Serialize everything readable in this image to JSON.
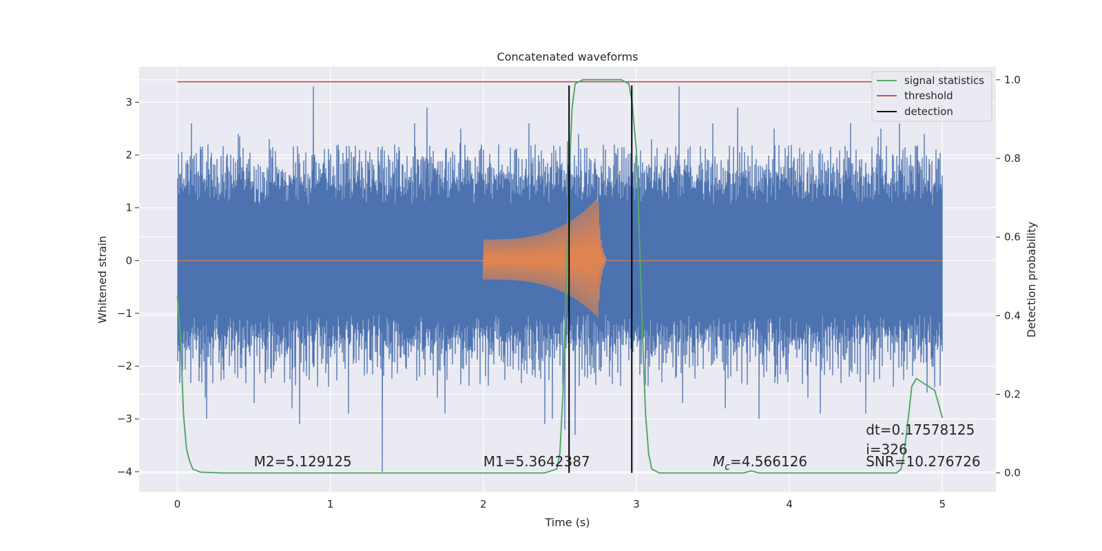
{
  "chart_data": {
    "type": "line",
    "title": "Concatenated waveforms",
    "xlabel": "Time (s)",
    "ylabel": "Whitened strain",
    "y2label": "Detection probability",
    "xlim": [
      -0.25,
      5.35
    ],
    "ylim": [
      -4.38,
      3.67
    ],
    "y2lim": [
      -0.048,
      1.033
    ],
    "xticks": [
      "0",
      "1",
      "2",
      "3",
      "4",
      "5"
    ],
    "yticks": [
      "3",
      "2",
      "1",
      "0",
      "−1",
      "−2",
      "−3",
      "−4"
    ],
    "y2ticks": [
      "1.0",
      "0.8",
      "0.6",
      "0.4",
      "0.2",
      "0.0"
    ],
    "grid": true,
    "legend_position": "top-right",
    "series": [
      {
        "kind": "noise",
        "color": "#4c72b0",
        "x_range": [
          0,
          5
        ],
        "envelope_upper": 1.2,
        "envelope_lower": -1.15,
        "spikes": [
          {
            "x": 0.09,
            "y": 2.6
          },
          {
            "x": 0.2,
            "y": 2.2
          },
          {
            "x": 0.4,
            "y": 2.4
          },
          {
            "x": 0.6,
            "y": 2.3
          },
          {
            "x": 0.89,
            "y": 3.3
          },
          {
            "x": 1.05,
            "y": 2.2
          },
          {
            "x": 1.33,
            "y": 2.1
          },
          {
            "x": 1.55,
            "y": 2.6
          },
          {
            "x": 1.63,
            "y": 2.9
          },
          {
            "x": 1.85,
            "y": 2.5
          },
          {
            "x": 2.1,
            "y": 2.2
          },
          {
            "x": 2.3,
            "y": 2.6
          },
          {
            "x": 2.62,
            "y": 2.4
          },
          {
            "x": 3.1,
            "y": 2.3
          },
          {
            "x": 3.28,
            "y": 3.3
          },
          {
            "x": 3.5,
            "y": 2.6
          },
          {
            "x": 3.66,
            "y": 2.9
          },
          {
            "x": 3.9,
            "y": 2.5
          },
          {
            "x": 4.2,
            "y": 2.4
          },
          {
            "x": 4.4,
            "y": 2.6
          },
          {
            "x": 4.6,
            "y": 2.5
          },
          {
            "x": 4.72,
            "y": 2.6
          },
          {
            "x": 4.88,
            "y": 2.4
          },
          {
            "x": 0.18,
            "y": -2.6
          },
          {
            "x": 0.19,
            "y": -3.0
          },
          {
            "x": 0.5,
            "y": -2.7
          },
          {
            "x": 0.75,
            "y": -2.8
          },
          {
            "x": 0.8,
            "y": -3.1
          },
          {
            "x": 1.12,
            "y": -2.9
          },
          {
            "x": 1.34,
            "y": -4.0
          },
          {
            "x": 1.7,
            "y": -2.6
          },
          {
            "x": 1.75,
            "y": -2.9
          },
          {
            "x": 2.4,
            "y": -3.1
          },
          {
            "x": 2.45,
            "y": -3.0
          },
          {
            "x": 2.53,
            "y": -3.2
          },
          {
            "x": 2.6,
            "y": -3.3
          },
          {
            "x": 3.3,
            "y": -2.7
          },
          {
            "x": 3.58,
            "y": -2.8
          },
          {
            "x": 3.8,
            "y": -3.0
          },
          {
            "x": 4.12,
            "y": -2.6
          },
          {
            "x": 4.2,
            "y": -2.9
          },
          {
            "x": 4.5,
            "y": -2.9
          },
          {
            "x": 4.9,
            "y": -2.5
          },
          {
            "x": 4.95,
            "y": -2.4
          }
        ]
      },
      {
        "kind": "chirp",
        "color": "#dd8452",
        "x_range": [
          2.0,
          2.77
        ],
        "amp_start": 0.4,
        "amp_peak": 1.2,
        "peak_x": 2.75,
        "ringdown_end_x": 2.8
      },
      {
        "name": "signal statistics",
        "color": "#55a868",
        "x": [
          0.0,
          0.02,
          0.04,
          0.06,
          0.08,
          0.1,
          0.15,
          0.3,
          2.4,
          2.48,
          2.5,
          2.52,
          2.54,
          2.56,
          2.58,
          2.6,
          2.65,
          2.9,
          2.95,
          2.97,
          3.0,
          3.02,
          3.04,
          3.06,
          3.08,
          3.1,
          3.15,
          3.3,
          3.7,
          3.75,
          3.8,
          4.7,
          4.73,
          4.75,
          4.78,
          4.8,
          4.83,
          4.95,
          5.0
        ],
        "y": [
          0.45,
          0.35,
          0.15,
          0.06,
          0.03,
          0.01,
          0.002,
          0.0,
          0.0,
          0.01,
          0.05,
          0.2,
          0.45,
          0.75,
          0.93,
          0.99,
          1.0,
          1.0,
          0.99,
          0.95,
          0.82,
          0.6,
          0.35,
          0.15,
          0.05,
          0.01,
          0.0,
          0.0,
          0.0,
          0.005,
          0.0,
          0.0,
          0.01,
          0.05,
          0.15,
          0.22,
          0.24,
          0.21,
          0.14
        ]
      },
      {
        "name": "threshold",
        "color": "#c44e52",
        "x": [
          0,
          5
        ],
        "y": [
          0.995,
          0.995
        ]
      },
      {
        "name": "detection",
        "color": "#000000",
        "x": [
          2.56,
          2.97
        ]
      }
    ],
    "annotations": [
      {
        "x": 0.5,
        "y": -3.9,
        "text": "M2=5.129125"
      },
      {
        "x": 2.0,
        "y": -3.9,
        "text": "M1=5.3642387"
      },
      {
        "x": 3.5,
        "y": -3.9,
        "text_main": "M",
        "text_sub": "c",
        "text_rest": "=4.566126"
      },
      {
        "x": 4.5,
        "y": -3.9,
        "text": "SNR=10.276726"
      },
      {
        "x": 4.5,
        "y": -3.3,
        "text": "dt=0.17578125"
      },
      {
        "x": 4.5,
        "y": -3.67,
        "text": " i=326"
      }
    ]
  },
  "legend": {
    "items": [
      {
        "label": "signal statistics",
        "color": "#55a868"
      },
      {
        "label": "threshold",
        "color": "#c44e52"
      },
      {
        "label": "detection",
        "color": "#000000"
      }
    ]
  }
}
